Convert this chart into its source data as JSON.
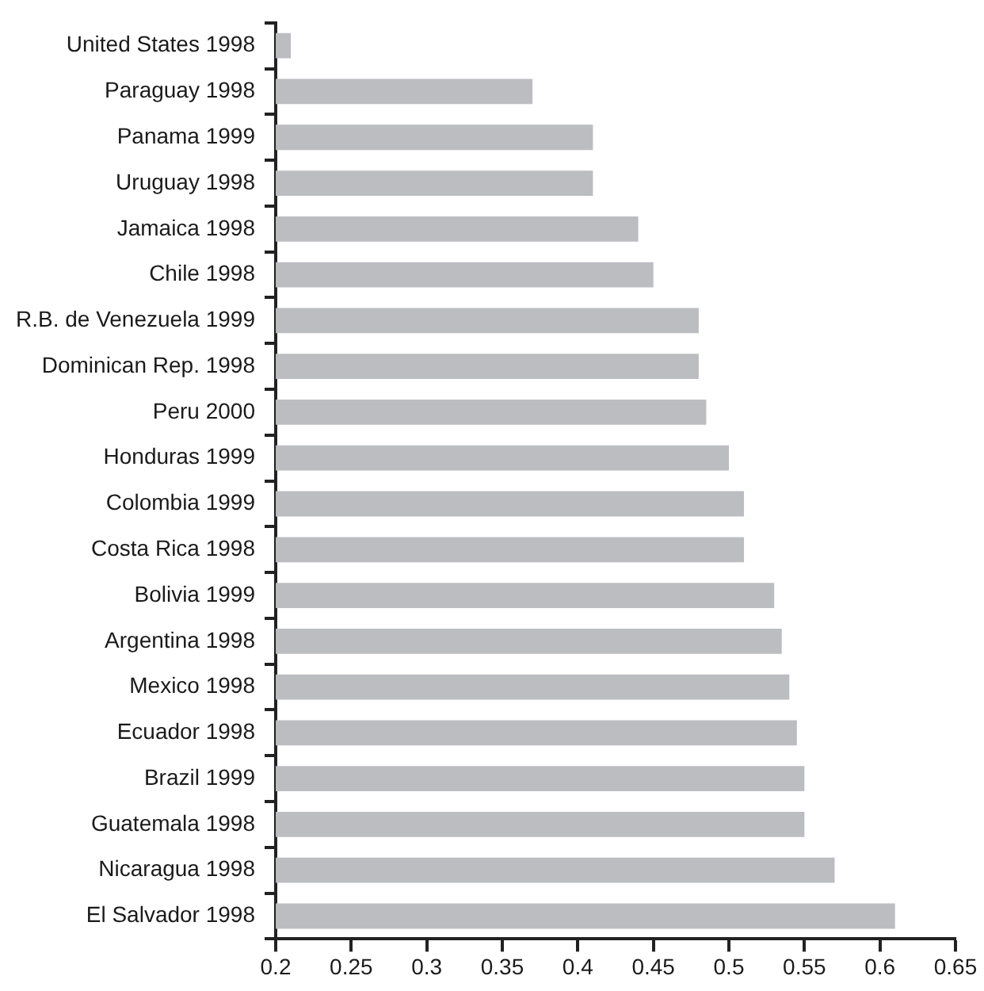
{
  "chart_data": {
    "type": "bar",
    "orientation": "horizontal",
    "categories": [
      "United States 1998",
      "Paraguay 1998",
      "Panama 1999",
      "Uruguay 1998",
      "Jamaica 1998",
      "Chile 1998",
      "R.B. de Venezuela 1999",
      "Dominican Rep. 1998",
      "Peru 2000",
      "Honduras 1999",
      "Colombia 1999",
      "Costa Rica 1998",
      "Bolivia 1999",
      "Argentina 1998",
      "Mexico 1998",
      "Ecuador 1998",
      "Brazil 1999",
      "Guatemala 1998",
      "Nicaragua 1998",
      "El Salvador 1998"
    ],
    "values": [
      0.21,
      0.37,
      0.41,
      0.41,
      0.44,
      0.45,
      0.48,
      0.48,
      0.485,
      0.5,
      0.51,
      0.51,
      0.53,
      0.535,
      0.54,
      0.545,
      0.55,
      0.55,
      0.57,
      0.61
    ],
    "color": "#bcbdc1",
    "xlim": [
      0.2,
      0.65
    ],
    "xticks": [
      0.2,
      0.25,
      0.3,
      0.35,
      0.4,
      0.45,
      0.5,
      0.55,
      0.6,
      0.65
    ],
    "grid": false,
    "legend": false
  }
}
